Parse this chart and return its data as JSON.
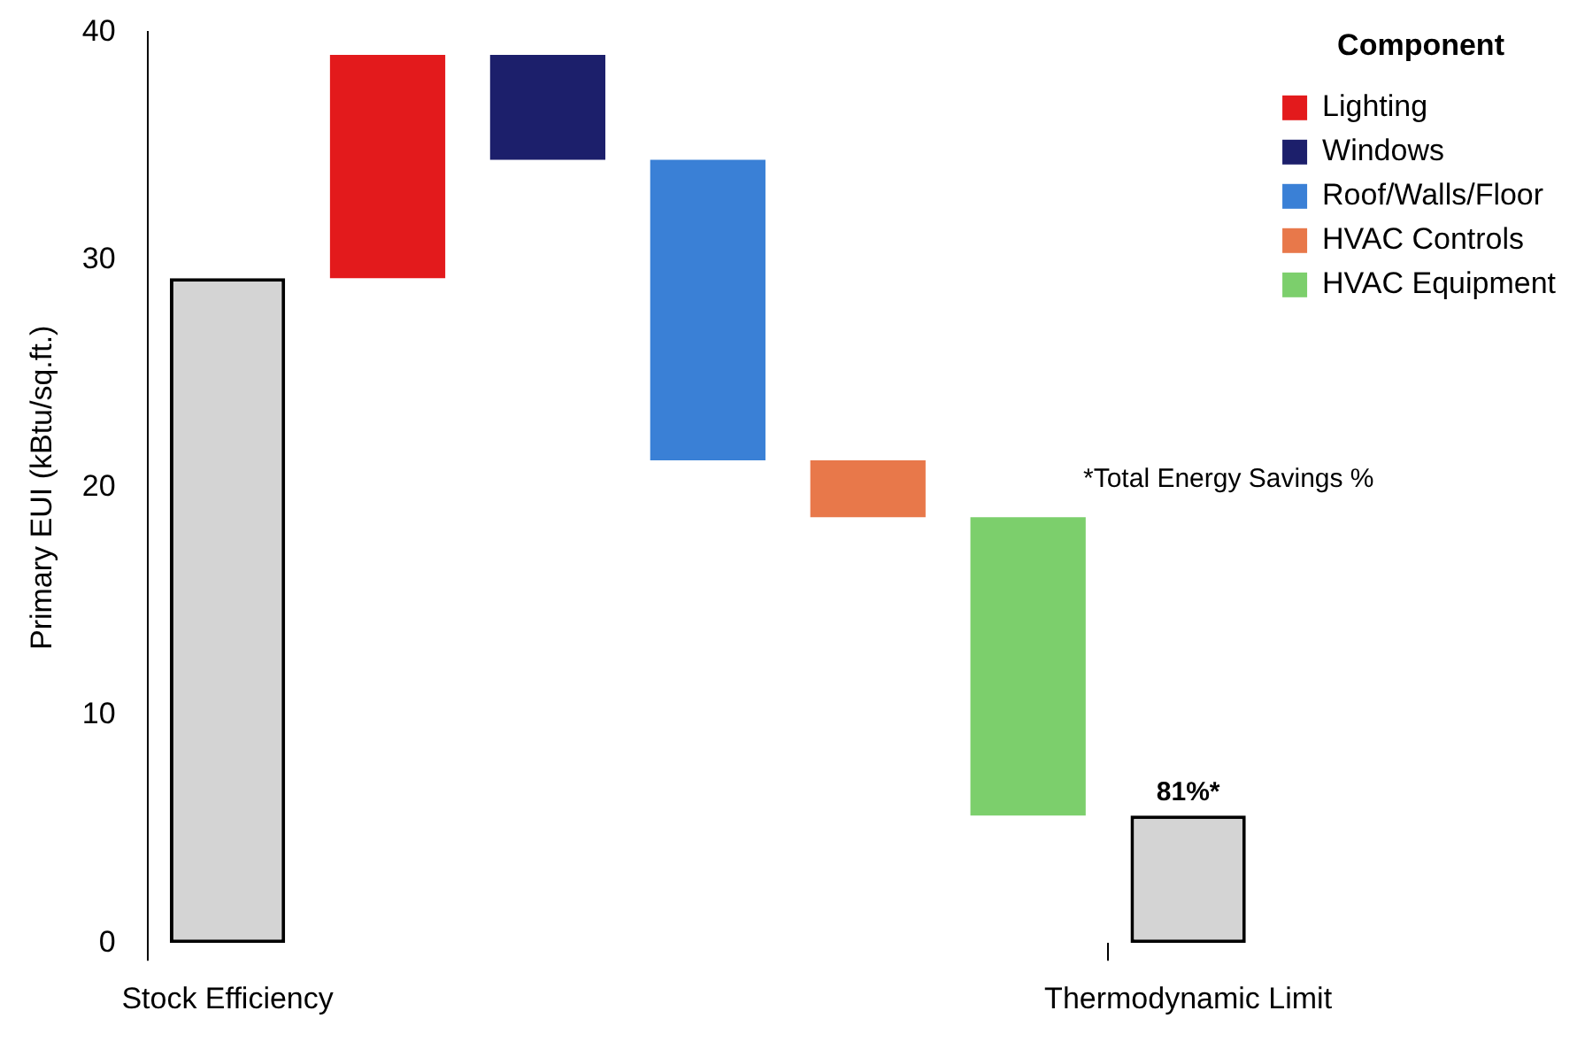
{
  "chart_data": {
    "type": "bar",
    "ylabel": "Primary EUI (kBtu/sq.ft.)",
    "legend_title": "Component",
    "legend": "top right",
    "grid": false,
    "categories": [
      "Stock Efficiency",
      null,
      null,
      null,
      null,
      null,
      "Thermodynamic Limit"
    ],
    "ylim": [
      0,
      40
    ],
    "yticks": [
      0,
      10,
      20,
      30,
      40
    ],
    "series": [
      {
        "color": "#d4d4d4",
        "base": [
          0,
          null,
          null,
          null,
          null,
          null,
          null
        ],
        "values": [
          29.2,
          null,
          null,
          null,
          null,
          null,
          null
        ]
      },
      {
        "name": "Lighting",
        "color": "#e31a1c",
        "base": [
          null,
          29.2,
          null,
          null,
          null,
          null,
          null
        ],
        "values": [
          null,
          9.8,
          null,
          null,
          null,
          null,
          null
        ]
      },
      {
        "name": "Windows",
        "color": "#1c1f6b",
        "base": [
          null,
          null,
          34.4,
          null,
          null,
          null,
          null
        ],
        "values": [
          null,
          null,
          4.6,
          null,
          null,
          null,
          null
        ]
      },
      {
        "name": "Roof/Walls/Floor",
        "color": "#3a80d6",
        "base": [
          null,
          null,
          null,
          21.2,
          null,
          null,
          null
        ],
        "values": [
          null,
          null,
          null,
          13.2,
          null,
          null,
          null
        ]
      },
      {
        "name": "HVAC Controls",
        "color": "#e8784a",
        "base": [
          null,
          null,
          null,
          null,
          18.7,
          null,
          null
        ],
        "values": [
          null,
          null,
          null,
          null,
          2.5,
          null,
          null
        ]
      },
      {
        "name": "HVAC Equipment",
        "color": "#7ccf6c",
        "base": [
          null,
          null,
          null,
          null,
          null,
          5.6,
          null
        ],
        "values": [
          null,
          null,
          null,
          null,
          null,
          13.1,
          null
        ]
      },
      {
        "color": "#d4d4d4",
        "base": [
          null,
          null,
          null,
          null,
          null,
          null,
          0
        ],
        "values": [
          null,
          null,
          null,
          null,
          null,
          null,
          5.6
        ]
      }
    ],
    "annotations": [
      {
        "text": "81%*",
        "x": "Thermodynamic Limit",
        "y": 5.6
      },
      "*Total Energy Savings %"
    ]
  }
}
